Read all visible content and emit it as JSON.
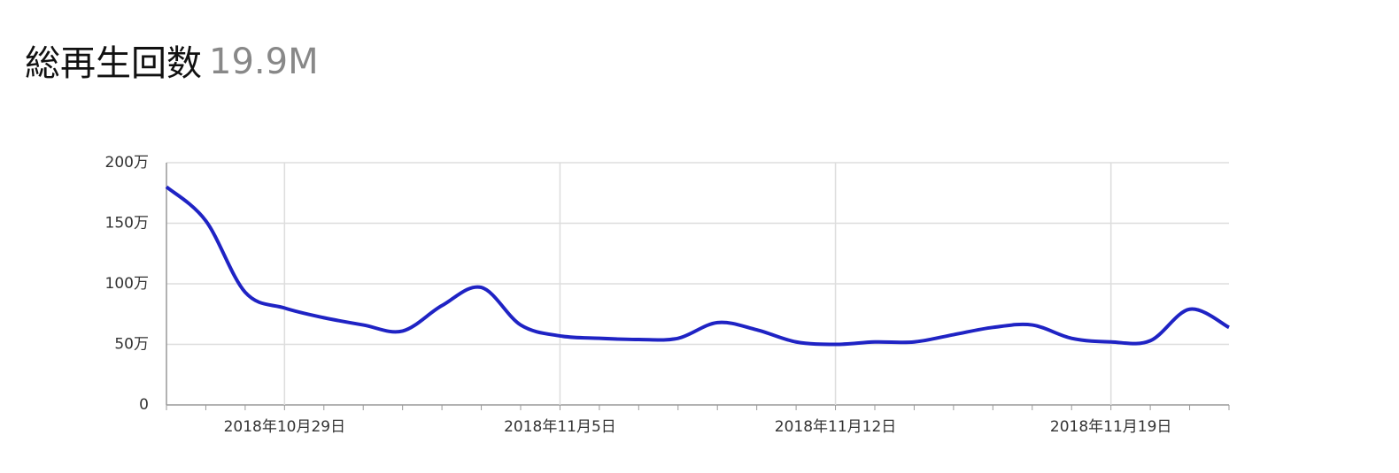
{
  "chart_data": {
    "type": "line",
    "title": "総再生回数",
    "subtitle": "19.9M",
    "categories": [
      null,
      null,
      null,
      "2018年10月29日",
      null,
      null,
      null,
      null,
      null,
      null,
      "2018年11月5日",
      null,
      null,
      null,
      null,
      null,
      null,
      "2018年11月12日",
      null,
      null,
      null,
      null,
      null,
      null,
      "2018年11月19日",
      null,
      null,
      null
    ],
    "series": [
      {
        "color": "#1f23c4",
        "values": [
          180,
          152,
          93,
          80,
          72,
          66,
          61,
          82,
          97,
          66,
          57,
          55,
          54,
          55,
          68,
          62,
          52,
          50,
          52,
          52,
          58,
          64,
          66,
          55,
          52,
          53,
          79,
          64
        ]
      }
    ],
    "ylim": [
      0,
      200
    ],
    "yticks": [
      0,
      {
        "value": 50,
        "label": "50万"
      },
      {
        "value": 100,
        "label": "100万"
      },
      {
        "value": 150,
        "label": "150万"
      },
      {
        "value": 200,
        "label": "200万"
      }
    ],
    "grid": true
  }
}
